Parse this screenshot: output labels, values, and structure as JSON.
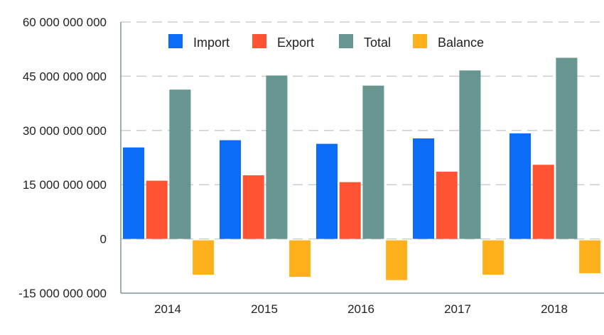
{
  "chart_data": {
    "type": "bar",
    "title": "",
    "xlabel": "",
    "ylabel": "",
    "categories": [
      "2014",
      "2015",
      "2016",
      "2017",
      "2018"
    ],
    "ylim": [
      -15000000000,
      60000000000
    ],
    "yticks": [
      60000000000,
      45000000000,
      30000000000,
      15000000000,
      0,
      -15000000000
    ],
    "ytick_labels": [
      "60 000 000 000",
      "45 000 000 000",
      "30 000 000 000",
      "15 000 000 000",
      "0",
      "-15 000 000 000"
    ],
    "grid": "horizontal dashed",
    "legend_position": "top",
    "series": [
      {
        "name": "Import",
        "color": "#0b6cf5",
        "values": [
          25300000000,
          27300000000,
          26300000000,
          27800000000,
          29200000000
        ]
      },
      {
        "name": "Export",
        "color": "#ff5333",
        "values": [
          16100000000,
          17600000000,
          15700000000,
          18600000000,
          20500000000
        ]
      },
      {
        "name": "Total",
        "color": "#679590",
        "values": [
          41300000000,
          45200000000,
          42400000000,
          46600000000,
          50100000000
        ]
      },
      {
        "name": "Balance",
        "color": "#ffb11b",
        "values": [
          -9500000000,
          -10100000000,
          -11000000000,
          -9500000000,
          -9100000000
        ]
      }
    ]
  }
}
